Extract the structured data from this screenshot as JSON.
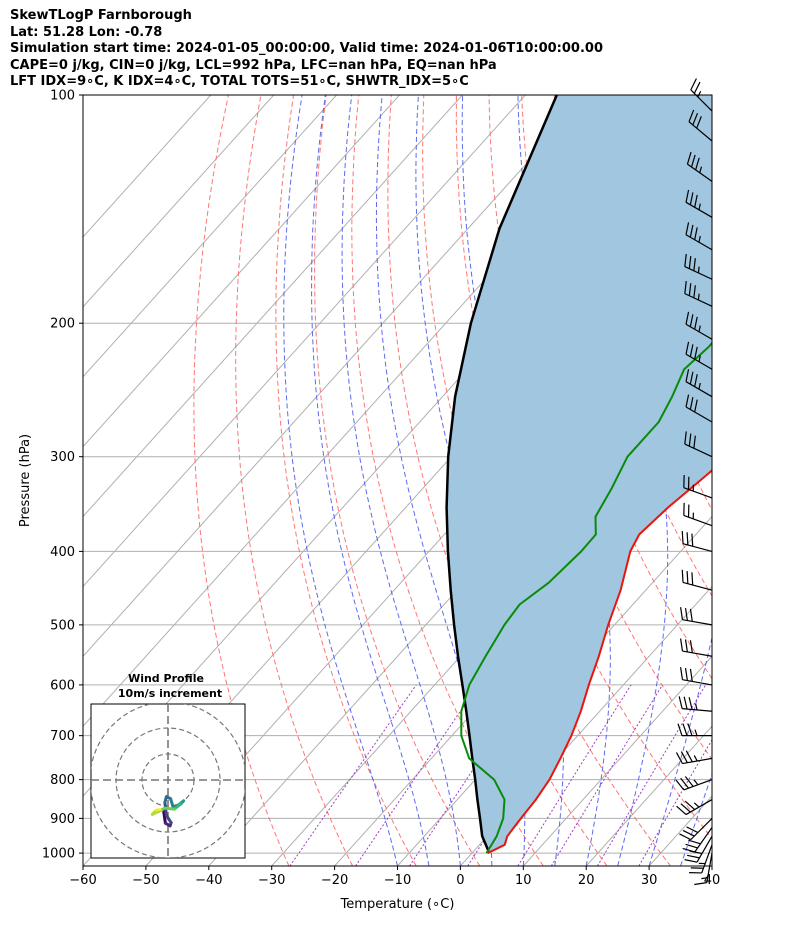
{
  "header": {
    "lines": [
      "SkewTLogP Farnborough",
      "Lat: 51.28   Lon: -0.78",
      "Simulation start time: 2024-01-05_00:00:00, Valid time: 2024-01-06T10:00:00.00",
      "CAPE=0 j/kg, CIN=0 j/kg, LCL=992 hPa, LFC=nan hPa, EQ=nan hPa",
      "LFT IDX=9∘C, K IDX=4∘C, TOTAL TOTS=51∘C, SHWTR_IDX=5∘C"
    ]
  },
  "chart_data": {
    "type": "line",
    "title": "SkewTLogP Farnborough",
    "xlabel": "Temperature (∘C)",
    "ylabel": "Pressure (hPa)",
    "xlim": [
      -60,
      40
    ],
    "ylim": [
      1040,
      100
    ],
    "y_scale": "log",
    "x_ticks": [
      "−60",
      "−50",
      "−40",
      "−30",
      "−20",
      "−10",
      "0",
      "10",
      "20",
      "30",
      "40"
    ],
    "y_ticks": [
      "100",
      "200",
      "300",
      "400",
      "500",
      "600",
      "700",
      "800",
      "900",
      "1000"
    ],
    "grid": true,
    "colors": {
      "temperature": "#e8150e",
      "dewpoint": "#0a8a0a",
      "parcel": "#000000",
      "shading": "#a1c6df",
      "dry_adiabat": "#ff6666",
      "moist_adiabat": "#4a5af0",
      "mixing_ratio": "#9c3fc4",
      "isotherm": "#b0b0b0"
    },
    "series": [
      {
        "name": "Temperature",
        "points": [
          [
            1000,
            2.5
          ],
          [
            975,
            4.0
          ],
          [
            950,
            3.2
          ],
          [
            925,
            3.0
          ],
          [
            900,
            2.8
          ],
          [
            850,
            2.5
          ],
          [
            800,
            1.8
          ],
          [
            750,
            0.5
          ],
          [
            700,
            -1.0
          ],
          [
            650,
            -3.0
          ],
          [
            600,
            -5.5
          ],
          [
            550,
            -8.0
          ],
          [
            500,
            -11.0
          ],
          [
            450,
            -14.0
          ],
          [
            400,
            -18.0
          ],
          [
            380,
            -19.0
          ],
          [
            350,
            -18.3
          ],
          [
            320,
            -16.9
          ],
          [
            300,
            -16.0
          ],
          [
            270,
            -13.5
          ],
          [
            250,
            -11.2
          ],
          [
            220,
            -7.5
          ],
          [
            200,
            -6.0
          ],
          [
            190,
            -4.7
          ],
          [
            170,
            -4.5
          ],
          [
            150,
            -4.0
          ],
          [
            120,
            -3.0
          ],
          [
            100,
            -2.0
          ]
        ]
      },
      {
        "name": "Dewpoint",
        "points": [
          [
            1000,
            2.3
          ],
          [
            950,
            1.5
          ],
          [
            900,
            0.0
          ],
          [
            850,
            -2.5
          ],
          [
            800,
            -7.0
          ],
          [
            750,
            -14.0
          ],
          [
            700,
            -18.5
          ],
          [
            650,
            -22.0
          ],
          [
            600,
            -24.5
          ],
          [
            550,
            -26.0
          ],
          [
            500,
            -27.5
          ],
          [
            470,
            -28.0
          ],
          [
            440,
            -26.5
          ],
          [
            400,
            -25.8
          ],
          [
            380,
            -25.9
          ],
          [
            360,
            -28.5
          ],
          [
            330,
            -30.0
          ],
          [
            300,
            -32.0
          ],
          [
            270,
            -32.0
          ],
          [
            250,
            -33.5
          ],
          [
            230,
            -35.5
          ],
          [
            215,
            -34.8
          ],
          [
            200,
            -35.0
          ],
          [
            190,
            -36.0
          ],
          [
            170,
            -38.0
          ],
          [
            140,
            -42.0
          ],
          [
            120,
            -46.0
          ],
          [
            100,
            -50.0
          ]
        ]
      },
      {
        "name": "Parcel",
        "points": [
          [
            1000,
            2.5
          ],
          [
            992,
            2.2
          ],
          [
            950,
            -0.8
          ],
          [
            900,
            -3.7
          ],
          [
            850,
            -6.8
          ],
          [
            800,
            -10.0
          ],
          [
            750,
            -13.5
          ],
          [
            700,
            -17.2
          ],
          [
            650,
            -21.2
          ],
          [
            600,
            -25.6
          ],
          [
            550,
            -30.4
          ],
          [
            500,
            -35.5
          ],
          [
            450,
            -41.0
          ],
          [
            400,
            -47.0
          ],
          [
            350,
            -53.5
          ],
          [
            300,
            -60.5
          ],
          [
            250,
            -68.0
          ],
          [
            200,
            -76.0
          ],
          [
            150,
            -85.0
          ],
          [
            100,
            -95.0
          ]
        ]
      }
    ],
    "wind_barbs": [
      {
        "p": 1000,
        "speed": 15,
        "dir": 190
      },
      {
        "p": 975,
        "speed": 25,
        "dir": 200
      },
      {
        "p": 950,
        "speed": 30,
        "dir": 210
      },
      {
        "p": 925,
        "speed": 30,
        "dir": 215
      },
      {
        "p": 900,
        "speed": 30,
        "dir": 225
      },
      {
        "p": 850,
        "speed": 35,
        "dir": 240
      },
      {
        "p": 800,
        "speed": 35,
        "dir": 250
      },
      {
        "p": 750,
        "speed": 35,
        "dir": 260
      },
      {
        "p": 700,
        "speed": 35,
        "dir": 270
      },
      {
        "p": 650,
        "speed": 35,
        "dir": 275
      },
      {
        "p": 600,
        "speed": 30,
        "dir": 280
      },
      {
        "p": 550,
        "speed": 30,
        "dir": 280
      },
      {
        "p": 500,
        "speed": 30,
        "dir": 280
      },
      {
        "p": 450,
        "speed": 30,
        "dir": 285
      },
      {
        "p": 400,
        "speed": 30,
        "dir": 285
      },
      {
        "p": 370,
        "speed": 25,
        "dir": 290
      },
      {
        "p": 340,
        "speed": 25,
        "dir": 290
      },
      {
        "p": 300,
        "speed": 30,
        "dir": 295
      },
      {
        "p": 270,
        "speed": 30,
        "dir": 300
      },
      {
        "p": 250,
        "speed": 35,
        "dir": 300
      },
      {
        "p": 230,
        "speed": 35,
        "dir": 300
      },
      {
        "p": 210,
        "speed": 35,
        "dir": 300
      },
      {
        "p": 190,
        "speed": 35,
        "dir": 295
      },
      {
        "p": 175,
        "speed": 35,
        "dir": 295
      },
      {
        "p": 160,
        "speed": 35,
        "dir": 300
      },
      {
        "p": 145,
        "speed": 35,
        "dir": 300
      },
      {
        "p": 130,
        "speed": 35,
        "dir": 305
      },
      {
        "p": 115,
        "speed": 30,
        "dir": 310
      },
      {
        "p": 105,
        "speed": 25,
        "dir": 315
      }
    ],
    "hodograph": {
      "title": "Wind Profile",
      "subtitle": "10m/s increment",
      "ring_step_ms": 10,
      "rings": 3,
      "points": [
        [
          -0.4,
          -0.8
        ],
        [
          -0.8,
          -1.4
        ],
        [
          -0.5,
          -3.5
        ],
        [
          0.4,
          -4.0
        ],
        [
          0.6,
          -3.4
        ],
        [
          -0.3,
          -2.0
        ],
        [
          -0.6,
          0.5
        ],
        [
          -0.3,
          1.6
        ],
        [
          0.5,
          1.2
        ],
        [
          1.0,
          -0.5
        ],
        [
          2.0,
          0.0
        ],
        [
          3.0,
          0.8
        ],
        [
          2.5,
          0.2
        ],
        [
          1.8,
          -0.3
        ],
        [
          1.2,
          -0.8
        ],
        [
          -0.6,
          -0.6
        ],
        [
          -2.2,
          -1.4
        ],
        [
          -3.0,
          -1.8
        ],
        [
          -2.2,
          -1.0
        ],
        [
          -1.5,
          -0.9
        ]
      ]
    }
  }
}
